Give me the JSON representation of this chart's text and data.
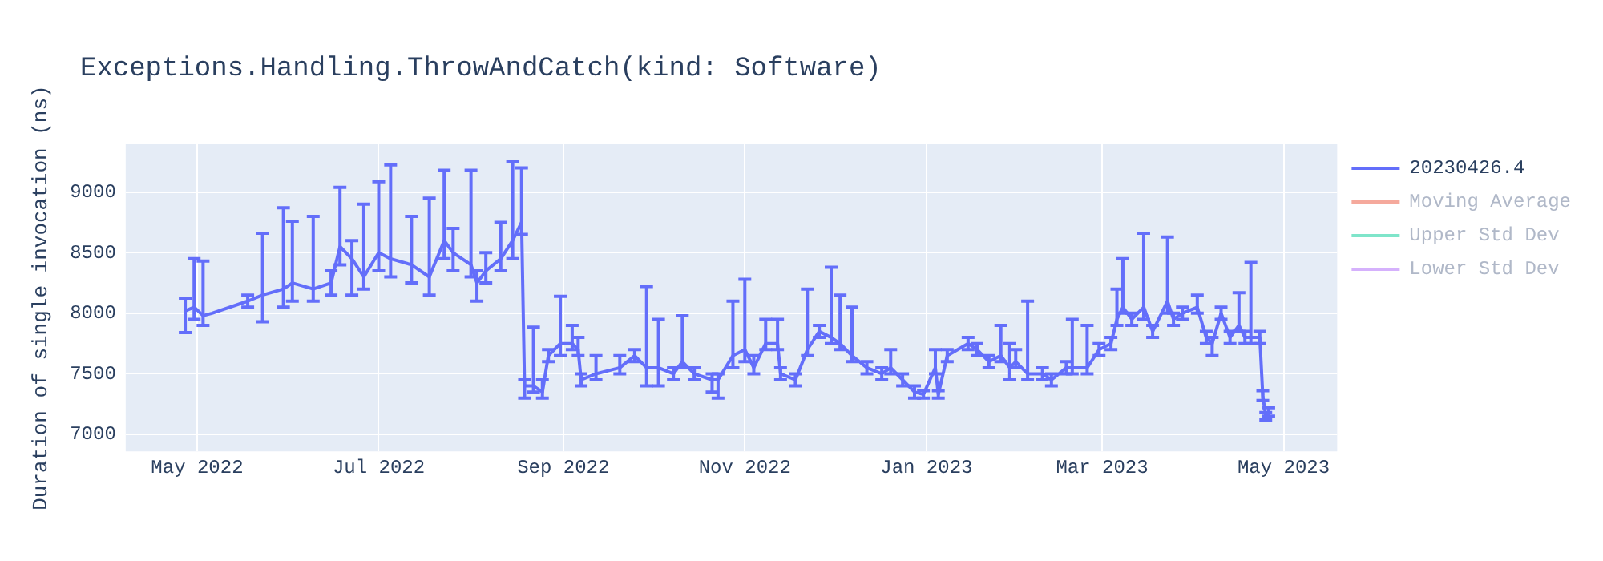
{
  "chart_data": {
    "type": "line",
    "title": "Exceptions.Handling.ThrowAndCatch(kind: Software)",
    "ylabel": "Duration of single invocation (ns)",
    "x": [
      "2022-04-27",
      "2022-04-30",
      "2022-05-03",
      "2022-05-06",
      "2022-05-18",
      "2022-05-23",
      "2022-05-30",
      "2022-06-02",
      "2022-06-09",
      "2022-06-15",
      "2022-06-18",
      "2022-06-22",
      "2022-06-26",
      "2022-07-01",
      "2022-07-05",
      "2022-07-12",
      "2022-07-18",
      "2022-07-23",
      "2022-07-26",
      "2022-08-01",
      "2022-08-03",
      "2022-08-06",
      "2022-08-11",
      "2022-08-15",
      "2022-08-18",
      "2022-08-19",
      "2022-08-22",
      "2022-08-25",
      "2022-08-27",
      "2022-08-31",
      "2022-09-04",
      "2022-09-06",
      "2022-09-07",
      "2022-09-12",
      "2022-09-20",
      "2022-09-25",
      "2022-09-29",
      "2022-10-03",
      "2022-10-08",
      "2022-10-11",
      "2022-10-15",
      "2022-10-21",
      "2022-10-23",
      "2022-10-28",
      "2022-11-01",
      "2022-11-04",
      "2022-11-08",
      "2022-11-12",
      "2022-11-13",
      "2022-11-18",
      "2022-11-22",
      "2022-11-26",
      "2022-11-30",
      "2022-12-03",
      "2022-12-07",
      "2022-12-12",
      "2022-12-17",
      "2022-12-20",
      "2022-12-24",
      "2022-12-28",
      "2022-12-31",
      "2023-01-04",
      "2023-01-05",
      "2023-01-08",
      "2023-01-15",
      "2023-01-18",
      "2023-01-22",
      "2023-01-26",
      "2023-01-29",
      "2023-01-31",
      "2023-02-04",
      "2023-02-09",
      "2023-02-12",
      "2023-02-17",
      "2023-02-19",
      "2023-02-24",
      "2023-02-28",
      "2023-03-04",
      "2023-03-06",
      "2023-03-08",
      "2023-03-11",
      "2023-03-15",
      "2023-03-18",
      "2023-03-23",
      "2023-03-25",
      "2023-03-28",
      "2023-04-02",
      "2023-04-05",
      "2023-04-07",
      "2023-04-10",
      "2023-04-13",
      "2023-04-16",
      "2023-04-18",
      "2023-04-20",
      "2023-04-23",
      "2023-04-24",
      "2023-04-25",
      "2023-04-26"
    ],
    "series": [
      {
        "name": "20230426.4",
        "color": "#636efa",
        "values": [
          8020,
          8050,
          7980,
          8000,
          8100,
          8150,
          8200,
          8250,
          8200,
          8250,
          8550,
          8450,
          8300,
          8500,
          8450,
          8400,
          8300,
          8600,
          8500,
          8400,
          8250,
          8350,
          8450,
          8600,
          8750,
          7400,
          7400,
          7350,
          7650,
          7750,
          7750,
          7700,
          7450,
          7500,
          7550,
          7650,
          7550,
          7550,
          7500,
          7600,
          7500,
          7450,
          7450,
          7650,
          7700,
          7550,
          7750,
          7750,
          7500,
          7450,
          7700,
          7850,
          7800,
          7750,
          7650,
          7550,
          7500,
          7550,
          7450,
          7350,
          7330,
          7550,
          7330,
          7650,
          7750,
          7700,
          7600,
          7650,
          7550,
          7600,
          7500,
          7500,
          7450,
          7550,
          7550,
          7550,
          7700,
          7750,
          7950,
          8050,
          7950,
          8050,
          7850,
          8100,
          7950,
          8000,
          8050,
          7800,
          7750,
          8000,
          7800,
          7900,
          7800,
          7800,
          7800,
          7320,
          7150,
          7180
        ],
        "errors": [
          [
            7840,
            8125
          ],
          [
            7950,
            8450
          ],
          [
            7900,
            8430
          ],
          null,
          [
            8050,
            8150
          ],
          [
            7930,
            8660
          ],
          [
            8050,
            8870
          ],
          [
            8100,
            8760
          ],
          [
            8100,
            8800
          ],
          [
            8150,
            8350
          ],
          [
            8400,
            9040
          ],
          [
            8150,
            8600
          ],
          [
            8200,
            8900
          ],
          [
            8350,
            9085
          ],
          [
            8300,
            9225
          ],
          [
            8250,
            8800
          ],
          [
            8150,
            8950
          ],
          [
            8450,
            9180
          ],
          [
            8350,
            8700
          ],
          [
            8300,
            9180
          ],
          [
            8100,
            8350
          ],
          [
            8250,
            8500
          ],
          [
            8350,
            8750
          ],
          [
            8450,
            9250
          ],
          [
            8650,
            9200
          ],
          [
            7300,
            7450
          ],
          [
            7350,
            7885
          ],
          [
            7300,
            7450
          ],
          [
            7600,
            7700
          ],
          [
            7650,
            8140
          ],
          [
            7700,
            7900
          ],
          [
            7650,
            7800
          ],
          [
            7400,
            7500
          ],
          [
            7450,
            7650
          ],
          [
            7500,
            7650
          ],
          [
            7600,
            7700
          ],
          [
            7400,
            8220
          ],
          [
            7400,
            7950
          ],
          [
            7450,
            7550
          ],
          [
            7550,
            7980
          ],
          [
            7450,
            7550
          ],
          [
            7350,
            7500
          ],
          [
            7300,
            7500
          ],
          [
            7550,
            8100
          ],
          [
            7600,
            8280
          ],
          [
            7500,
            7650
          ],
          [
            7700,
            7950
          ],
          [
            7700,
            7950
          ],
          [
            7450,
            7550
          ],
          [
            7400,
            7500
          ],
          [
            7650,
            8200
          ],
          [
            7800,
            7900
          ],
          [
            7750,
            8380
          ],
          [
            7700,
            8150
          ],
          [
            7600,
            8050
          ],
          [
            7500,
            7600
          ],
          [
            7450,
            7550
          ],
          [
            7500,
            7700
          ],
          [
            7400,
            7500
          ],
          [
            7300,
            7400
          ],
          [
            7300,
            7360
          ],
          [
            7500,
            7700
          ],
          [
            7300,
            7360
          ],
          [
            7600,
            7700
          ],
          [
            7700,
            7800
          ],
          [
            7650,
            7750
          ],
          [
            7550,
            7650
          ],
          [
            7600,
            7900
          ],
          [
            7450,
            7750
          ],
          [
            7550,
            7700
          ],
          [
            7450,
            8100
          ],
          [
            7450,
            7550
          ],
          [
            7400,
            7500
          ],
          [
            7500,
            7600
          ],
          [
            7500,
            7950
          ],
          [
            7500,
            7900
          ],
          [
            7650,
            7750
          ],
          [
            7700,
            7800
          ],
          [
            7900,
            8200
          ],
          [
            8000,
            8450
          ],
          [
            7900,
            8000
          ],
          [
            7950,
            8660
          ],
          [
            7800,
            7900
          ],
          [
            8000,
            8630
          ],
          [
            7900,
            8000
          ],
          [
            7950,
            8050
          ],
          [
            8000,
            8150
          ],
          [
            7750,
            7850
          ],
          [
            7650,
            7800
          ],
          [
            7950,
            8050
          ],
          [
            7750,
            7850
          ],
          [
            7850,
            8170
          ],
          [
            7750,
            7850
          ],
          [
            7750,
            8420
          ],
          [
            7750,
            7850
          ],
          [
            7280,
            7360
          ],
          [
            7120,
            7180
          ],
          [
            7150,
            7220
          ]
        ]
      },
      {
        "name": "Moving Average",
        "color": "#f5a99c",
        "values": [
          null,
          null,
          null,
          null,
          null,
          null,
          null,
          null,
          null,
          null,
          null,
          null,
          null,
          null,
          null,
          null,
          null,
          null,
          null,
          null,
          null,
          null,
          null,
          null,
          null,
          null,
          null,
          null,
          null,
          null,
          null,
          null,
          null,
          null,
          null,
          null,
          null,
          null,
          null,
          null,
          null,
          null,
          null,
          null,
          null,
          null,
          null,
          null,
          null,
          null,
          null,
          null,
          null,
          null,
          null,
          null,
          null,
          null,
          null,
          null,
          null,
          null,
          null,
          null,
          null,
          null,
          null,
          null,
          null,
          null,
          null,
          null,
          null,
          null,
          null,
          null,
          null,
          null,
          null,
          null,
          null,
          null,
          null,
          null,
          null,
          null,
          null,
          null,
          null,
          null,
          null,
          null,
          null,
          null,
          null,
          null,
          null,
          null
        ]
      },
      {
        "name": "Upper Std Dev",
        "color": "#7fe5ca",
        "values": [
          null,
          null,
          null,
          null,
          null,
          null,
          null,
          null,
          null,
          null,
          null,
          null,
          null,
          null,
          null,
          null,
          null,
          null,
          null,
          null,
          null,
          null,
          null,
          null,
          null,
          null,
          null,
          null,
          null,
          null,
          null,
          null,
          null,
          null,
          null,
          null,
          null,
          null,
          null,
          null,
          null,
          null,
          null,
          null,
          null,
          null,
          null,
          null,
          null,
          null,
          null,
          null,
          null,
          null,
          null,
          null,
          null,
          null,
          null,
          null,
          null,
          null,
          null,
          null,
          null,
          null,
          null,
          null,
          null,
          null,
          null,
          null,
          null,
          null,
          null,
          null,
          null,
          null,
          null,
          null,
          null,
          null,
          null,
          null,
          null,
          null,
          null,
          null,
          null,
          null,
          null,
          null,
          null,
          null,
          null,
          null,
          null,
          null
        ]
      },
      {
        "name": "Lower Std Dev",
        "color": "#d5b1fc",
        "values": [
          null,
          null,
          null,
          null,
          null,
          null,
          null,
          null,
          null,
          null,
          null,
          null,
          null,
          null,
          null,
          null,
          null,
          null,
          null,
          null,
          null,
          null,
          null,
          null,
          null,
          null,
          null,
          null,
          null,
          null,
          null,
          null,
          null,
          null,
          null,
          null,
          null,
          null,
          null,
          null,
          null,
          null,
          null,
          null,
          null,
          null,
          null,
          null,
          null,
          null,
          null,
          null,
          null,
          null,
          null,
          null,
          null,
          null,
          null,
          null,
          null,
          null,
          null,
          null,
          null,
          null,
          null,
          null,
          null,
          null,
          null,
          null,
          null,
          null,
          null,
          null,
          null,
          null,
          null,
          null,
          null,
          null,
          null,
          null,
          null,
          null,
          null,
          null,
          null,
          null,
          null,
          null,
          null,
          null,
          null,
          null,
          null,
          null
        ]
      }
    ],
    "xlim": [
      "2022-04-07",
      "2023-05-19"
    ],
    "xticks": [
      {
        "value": "2022-05-01",
        "label": "May 2022"
      },
      {
        "value": "2022-07-01",
        "label": "Jul 2022"
      },
      {
        "value": "2022-09-01",
        "label": "Sep 2022"
      },
      {
        "value": "2022-11-01",
        "label": "Nov 2022"
      },
      {
        "value": "2023-01-01",
        "label": "Jan 2023"
      },
      {
        "value": "2023-03-01",
        "label": "Mar 2023"
      },
      {
        "value": "2023-05-01",
        "label": "May 2023"
      }
    ],
    "ylim": [
      6860,
      9395
    ],
    "yticks": [
      7000,
      7500,
      8000,
      8500,
      9000
    ],
    "grid": true,
    "legend": "top right",
    "marker": "none",
    "line_style": "solid"
  }
}
